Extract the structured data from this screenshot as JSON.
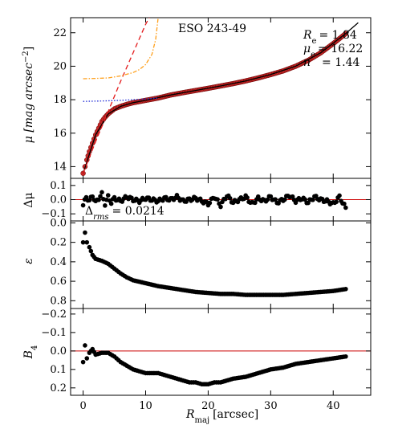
{
  "figure": {
    "galaxy_name": "ESO 243-49",
    "params": {
      "re_label": "R",
      "re_sub": "e",
      "re_value": "= 1.84",
      "mue_label": "μ",
      "mue_sub": "e",
      "mue_value": "= 16.22",
      "n_label": "n",
      "n_value": "= 1.44"
    },
    "rms_text": "Δ",
    "rms_sub": "rms",
    "rms_value": "= 0.0214",
    "xlabel_main": "R",
    "xlabel_sub": "maj",
    "xlabel_unit": "[arcsec]",
    "colors": {
      "data_fill": "#c62828",
      "model": "#000000",
      "disk": "#1f2bd6",
      "bulge": "#e31a1c",
      "component3": "#ff9f1a",
      "zero_line": "#cc0000",
      "points": "#000000"
    }
  },
  "chart_data": [
    {
      "type": "scatter",
      "panel": "surface-brightness",
      "ylabel": "μ [mag arcsec⁻²]",
      "ylabel_main": "μ [mag arcsec",
      "ylabel_exp": "−2",
      "ylabel_close": "]",
      "xlim": [
        -2,
        46
      ],
      "ylim": [
        22.9,
        13.3
      ],
      "yticks": [
        "14",
        "16",
        "18",
        "20",
        "22"
      ],
      "xticks": [
        "0",
        "10",
        "20",
        "30",
        "40"
      ],
      "series": [
        {
          "kind": "data",
          "x": [
            0,
            0.3,
            0.6,
            1,
            1.5,
            2,
            2.5,
            3,
            3.5,
            4,
            5,
            6,
            7,
            8,
            10,
            12,
            14,
            16,
            18,
            20,
            22,
            24,
            26,
            28,
            30,
            32,
            34,
            36,
            38,
            40,
            42
          ],
          "y": [
            13.6,
            14.0,
            14.4,
            14.9,
            15.4,
            15.9,
            16.3,
            16.7,
            16.95,
            17.15,
            17.45,
            17.6,
            17.72,
            17.82,
            17.96,
            18.1,
            18.28,
            18.42,
            18.55,
            18.68,
            18.82,
            18.96,
            19.12,
            19.3,
            19.5,
            19.72,
            20.0,
            20.35,
            20.8,
            21.35,
            21.95
          ]
        },
        {
          "kind": "model",
          "x": [
            0,
            2,
            4,
            6,
            8,
            10,
            14,
            18,
            22,
            26,
            30,
            34,
            38,
            42,
            44
          ],
          "y": [
            13.6,
            15.9,
            17.15,
            17.6,
            17.82,
            17.96,
            18.28,
            18.55,
            18.82,
            19.12,
            19.5,
            20.0,
            20.8,
            21.95,
            22.6
          ]
        },
        {
          "kind": "disk",
          "x": [
            0,
            3,
            6,
            9,
            12
          ],
          "y": [
            17.9,
            17.92,
            17.96,
            18.02,
            18.1
          ]
        },
        {
          "kind": "bulge",
          "x": [
            0,
            2,
            4,
            6,
            8,
            10,
            11
          ],
          "y": [
            13.6,
            15.5,
            17.3,
            19.1,
            20.8,
            22.5,
            23.2
          ]
        },
        {
          "kind": "component3",
          "x": [
            0,
            2,
            4,
            6,
            8,
            9,
            10,
            11,
            11.6,
            12
          ],
          "y": [
            19.25,
            19.27,
            19.3,
            19.42,
            19.62,
            19.8,
            20.1,
            20.7,
            21.6,
            22.9
          ]
        }
      ]
    },
    {
      "type": "scatter",
      "panel": "residual",
      "ylabel": "Δμ",
      "ylim": [
        0.15,
        -0.15
      ],
      "yticks": [
        "−0.1",
        "0.0",
        "0.1"
      ],
      "x": [
        0,
        0.5,
        1,
        1.5,
        2,
        2.5,
        3,
        3.5,
        4,
        4.5,
        5,
        6,
        7,
        8,
        9,
        10,
        11,
        12,
        13,
        14,
        15,
        16,
        17,
        18,
        19,
        20,
        21,
        22,
        23,
        24,
        25,
        26,
        27,
        28,
        29,
        30,
        31,
        32,
        33,
        34,
        35,
        36,
        37,
        38,
        39,
        40,
        41,
        42
      ],
      "y": [
        -0.04,
        0.02,
        -0.01,
        0.03,
        -0.02,
        0.01,
        0.04,
        -0.03,
        0.02,
        -0.02,
        0.01,
        -0.01,
        0.02,
        0.0,
        -0.01,
        0.01,
        0.0,
        -0.01,
        0.01,
        0.0,
        0.02,
        -0.01,
        0.0,
        0.01,
        -0.01,
        -0.03,
        0.02,
        -0.04,
        0.03,
        -0.02,
        0.0,
        0.02,
        -0.03,
        0.01,
        -0.01,
        0.02,
        -0.02,
        0.0,
        0.03,
        -0.01,
        0.01,
        -0.02,
        0.02,
        0.0,
        -0.01,
        -0.03,
        0.02,
        -0.06
      ]
    },
    {
      "type": "scatter",
      "panel": "ellipticity",
      "ylabel": "ε",
      "ylim": [
        -0.02,
        0.88
      ],
      "yticks": [
        "0.0",
        "0.2",
        "0.4",
        "0.6",
        "0.8"
      ],
      "x": [
        0,
        0.3,
        0.6,
        1,
        1.5,
        2,
        3,
        4,
        5,
        6,
        7,
        8,
        10,
        12,
        14,
        16,
        18,
        20,
        22,
        24,
        26,
        28,
        30,
        32,
        34,
        36,
        38,
        40,
        42
      ],
      "y": [
        0.2,
        0.1,
        0.2,
        0.25,
        0.33,
        0.37,
        0.39,
        0.42,
        0.47,
        0.52,
        0.56,
        0.59,
        0.62,
        0.65,
        0.67,
        0.69,
        0.71,
        0.72,
        0.73,
        0.73,
        0.74,
        0.74,
        0.74,
        0.74,
        0.73,
        0.72,
        0.71,
        0.7,
        0.68
      ]
    },
    {
      "type": "scatter",
      "panel": "b4",
      "ylabel": "B₄",
      "ylabel_main": "B",
      "ylabel_sub": "4",
      "ylim": [
        -0.23,
        0.24
      ],
      "yticks": [
        "−0.2",
        "−0.1",
        "0.0",
        "0.1",
        "0.2"
      ],
      "x": [
        0,
        0.3,
        0.6,
        1,
        1.5,
        2,
        3,
        4,
        5,
        6,
        7,
        8,
        9,
        10,
        11,
        12,
        13,
        14,
        15,
        16,
        17,
        18,
        19,
        20,
        21,
        22,
        24,
        26,
        28,
        30,
        32,
        34,
        36,
        38,
        40,
        42
      ],
      "y": [
        0.06,
        -0.03,
        0.04,
        0.01,
        -0.01,
        0.02,
        0.01,
        0.01,
        0.03,
        0.06,
        0.08,
        0.1,
        0.11,
        0.12,
        0.12,
        0.12,
        0.13,
        0.14,
        0.15,
        0.16,
        0.17,
        0.17,
        0.18,
        0.18,
        0.17,
        0.17,
        0.15,
        0.14,
        0.12,
        0.1,
        0.09,
        0.07,
        0.06,
        0.05,
        0.04,
        0.03
      ]
    }
  ]
}
